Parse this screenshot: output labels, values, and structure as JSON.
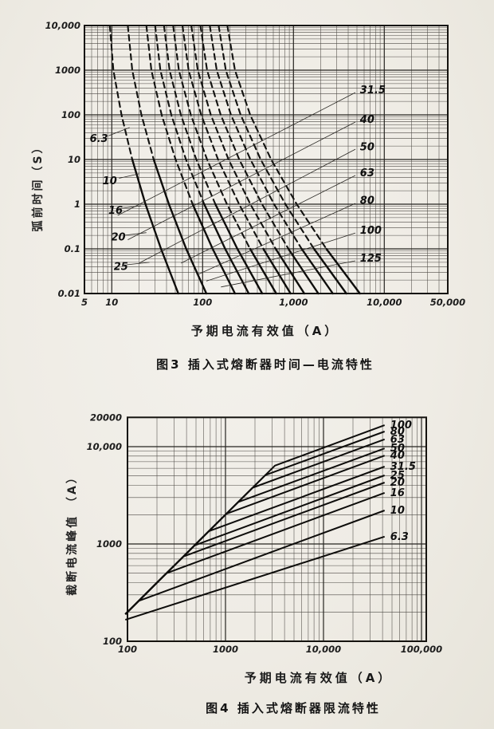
{
  "page": {
    "paper_color": "#efece5",
    "ink_color": "#1a1a1a"
  },
  "chart_data": [
    {
      "type": "line",
      "title": "图3  插入式熔断器时间—电流特性",
      "xlabel": "予期电流有效值（A）",
      "ylabel": "弧前时间（S）",
      "series_unit": "A",
      "x_axis": {
        "scale": "log",
        "min": 5,
        "max": 50000,
        "ticks": [
          {
            "v": 5,
            "label": "5"
          },
          {
            "v": 10,
            "label": "10"
          },
          {
            "v": 100,
            "label": "100"
          },
          {
            "v": 1000,
            "label": "1,000"
          },
          {
            "v": 10000,
            "label": "10,000"
          },
          {
            "v": 50000,
            "label": "50,000"
          }
        ]
      },
      "y_axis": {
        "scale": "log",
        "min": 0.01,
        "max": 10000,
        "ticks": [
          {
            "v": 10000,
            "label": "10,000"
          },
          {
            "v": 1000,
            "label": "1000"
          },
          {
            "v": 100,
            "label": "100"
          },
          {
            "v": 10,
            "label": "10"
          },
          {
            "v": 1,
            "label": "1"
          },
          {
            "v": 0.1,
            "label": "0.1"
          },
          {
            "v": 0.01,
            "label": "0.01"
          }
        ]
      },
      "series": [
        {
          "name": "6.3",
          "solid_from_t": 10,
          "points": [
            [
              9.5,
              10000
            ],
            [
              10.4,
              1000
            ],
            [
              12.8,
              100
            ],
            [
              16.8,
              10
            ],
            [
              23.5,
              1
            ],
            [
              34.8,
              0.1
            ],
            [
              54,
              0.01
            ]
          ]
        },
        {
          "name": "10",
          "solid_from_t": 10,
          "points": [
            [
              15,
              10000
            ],
            [
              16.8,
              1000
            ],
            [
              21.2,
              100
            ],
            [
              28.9,
              10
            ],
            [
              42.5,
              1
            ],
            [
              66,
              0.1
            ],
            [
              110,
              0.01
            ]
          ]
        },
        {
          "name": "16",
          "solid_from_t": 1,
          "points": [
            [
              24,
              10000
            ],
            [
              27.3,
              1000
            ],
            [
              35.4,
              100
            ],
            [
              50.4,
              10
            ],
            [
              77.7,
              1
            ],
            [
              129,
              0.1
            ],
            [
              227,
              0.01
            ]
          ]
        },
        {
          "name": "20",
          "solid_from_t": 1,
          "points": [
            [
              30,
              10000
            ],
            [
              34.3,
              1000
            ],
            [
              45.2,
              100
            ],
            [
              65.6,
              10
            ],
            [
              104,
              1
            ],
            [
              177,
              0.1
            ],
            [
              322,
              0.01
            ]
          ]
        },
        {
          "name": "25",
          "solid_from_t": 1,
          "points": [
            [
              37.5,
              10000
            ],
            [
              43.2,
              1000
            ],
            [
              57.6,
              100
            ],
            [
              85.3,
              10
            ],
            [
              138,
              1
            ],
            [
              241,
              0.1
            ],
            [
              453,
              0.01
            ]
          ]
        },
        {
          "name": "31.5",
          "solid_from_t": 0.1,
          "points": [
            [
              47.3,
              10000
            ],
            [
              54.8,
              1000
            ],
            [
              74.2,
              100
            ],
            [
              112,
              10
            ],
            [
              185,
              1
            ],
            [
              333,
              0.1
            ],
            [
              646,
              0.01
            ]
          ]
        },
        {
          "name": "40",
          "solid_from_t": 0.1,
          "points": [
            [
              60,
              10000
            ],
            [
              70.1,
              1000
            ],
            [
              96.3,
              100
            ],
            [
              148,
              10
            ],
            [
              252,
              1
            ],
            [
              466,
              0.1
            ],
            [
              930,
              0.01
            ]
          ]
        },
        {
          "name": "50",
          "solid_from_t": 0.1,
          "points": [
            [
              75,
              10000
            ],
            [
              88.3,
              1000
            ],
            [
              123,
              100
            ],
            [
              193,
              10
            ],
            [
              335,
              1
            ],
            [
              637,
              0.1
            ],
            [
              1315,
              0.01
            ]
          ]
        },
        {
          "name": "63",
          "solid_from_t": 0.1,
          "points": [
            [
              94.5,
              10000
            ],
            [
              112,
              1000
            ],
            [
              158,
              100
            ],
            [
              253,
              10
            ],
            [
              451,
              1
            ],
            [
              881,
              0.1
            ],
            [
              1877,
              0.01
            ]
          ]
        },
        {
          "name": "80",
          "solid_from_t": 0.1,
          "points": [
            [
              120,
              10000
            ],
            [
              143,
              1000
            ],
            [
              205,
              100
            ],
            [
              336,
              10
            ],
            [
              612,
              1
            ],
            [
              1232,
              0.1
            ],
            [
              2712,
              0.01
            ]
          ]
        },
        {
          "name": "100",
          "solid_from_t": 0.1,
          "points": [
            [
              150,
              10000
            ],
            [
              180,
              1000
            ],
            [
              262,
              100
            ],
            [
              436,
              10
            ],
            [
              815,
              1
            ],
            [
              1683,
              0.1
            ],
            [
              3820,
              0.01
            ]
          ]
        },
        {
          "name": "125",
          "solid_from_t": 0.1,
          "points": [
            [
              187,
              10000
            ],
            [
              227,
              1000
            ],
            [
              334,
              100
            ],
            [
              568,
              10
            ],
            [
              1085,
              1
            ],
            [
              2302,
              0.1
            ],
            [
              5390,
              0.01
            ]
          ]
        }
      ],
      "annotations": [
        {
          "text": "6.3",
          "at": [
            7.2,
            29
          ],
          "anchor": "middle",
          "leader": [
            [
              9.2,
              34
            ],
            [
              15.7,
              52
            ]
          ]
        },
        {
          "text": "10",
          "at": [
            9.5,
            3.3
          ],
          "anchor": "middle",
          "leader": [
            [
              12,
              3.8
            ],
            [
              20,
              4.8
            ]
          ]
        },
        {
          "text": "16",
          "at": [
            11,
            0.72
          ],
          "anchor": "middle",
          "leader": [
            [
              12.5,
              0.8
            ],
            [
              21,
              0.92
            ]
          ]
        },
        {
          "text": "20",
          "at": [
            11.8,
            0.18
          ],
          "anchor": "middle",
          "leader": [
            [
              13.5,
              0.2
            ],
            [
              24,
              0.23
            ]
          ]
        },
        {
          "text": "25",
          "at": [
            12.6,
            0.04
          ],
          "anchor": "middle",
          "leader": [
            [
              14.5,
              0.044
            ],
            [
              26,
              0.05
            ]
          ]
        },
        {
          "text": "31.5",
          "at": [
            5400,
            360
          ],
          "anchor": "start",
          "leader": [
            [
              4800,
              316
            ],
            [
              11.6,
              0.56
            ]
          ]
        },
        {
          "text": "40",
          "at": [
            5400,
            78
          ],
          "anchor": "start",
          "leader": [
            [
              4800,
              69
            ],
            [
              15,
              0.16
            ]
          ]
        },
        {
          "text": "50",
          "at": [
            5400,
            19
          ],
          "anchor": "start",
          "leader": [
            [
              4800,
              17
            ],
            [
              20,
              0.048
            ]
          ]
        },
        {
          "text": "63",
          "at": [
            5400,
            5
          ],
          "anchor": "start",
          "leader": [
            [
              4800,
              4.4
            ],
            [
              58,
              0.048
            ]
          ]
        },
        {
          "text": "80",
          "at": [
            5400,
            1.2
          ],
          "anchor": "start",
          "leader": [
            [
              4800,
              1.04
            ],
            [
              86,
              0.026
            ]
          ]
        },
        {
          "text": "100",
          "at": [
            5400,
            0.26
          ],
          "anchor": "start",
          "leader": [
            [
              4800,
              0.227
            ],
            [
              110,
              0.019
            ]
          ]
        },
        {
          "text": "125",
          "at": [
            5400,
            0.061
          ],
          "anchor": "start",
          "leader": [
            [
              4800,
              0.054
            ],
            [
              159,
              0.014
            ]
          ]
        }
      ]
    },
    {
      "type": "line",
      "title": "图4  插入式熔断器限流特性",
      "xlabel": "予期电流有效值（A）",
      "ylabel": "截断电流峰值 （A）",
      "series_unit": "A",
      "x_axis": {
        "scale": "log",
        "min": 100,
        "max": 110000,
        "ticks": [
          {
            "v": 100,
            "label": "100"
          },
          {
            "v": 1000,
            "label": "1000"
          },
          {
            "v": 10000,
            "label": "10,000"
          },
          {
            "v": 100000,
            "label": "100,000"
          }
        ]
      },
      "y_axis": {
        "scale": "log",
        "min": 100,
        "max": 20000,
        "ticks": [
          {
            "v": 20000,
            "label": "20000"
          },
          {
            "v": 10000,
            "label": "10,000"
          },
          {
            "v": 1000,
            "label": "1000"
          },
          {
            "v": 100,
            "label": "100"
          }
        ]
      },
      "series": [
        {
          "name": "100",
          "points": [
            [
              95,
              190
            ],
            [
              3190,
              6380
            ],
            [
              42000,
              16600
            ]
          ]
        },
        {
          "name": "80",
          "points": [
            [
              95,
              190
            ],
            [
              2550,
              5100
            ],
            [
              42000,
              14300
            ]
          ]
        },
        {
          "name": "63",
          "points": [
            [
              95,
              190
            ],
            [
              1890,
              3780
            ],
            [
              42000,
              11900
            ]
          ]
        },
        {
          "name": "50",
          "points": [
            [
              95,
              190
            ],
            [
              1350,
              2700
            ],
            [
              42000,
              9600
            ]
          ]
        },
        {
          "name": "40",
          "points": [
            [
              95,
              190
            ],
            [
              1020,
              2040
            ],
            [
              42000,
              8100
            ]
          ]
        },
        {
          "name": "31.5",
          "points": [
            [
              95,
              190
            ],
            [
              675,
              1350
            ],
            [
              42000,
              6240
            ]
          ]
        },
        {
          "name": "25",
          "points": [
            [
              95,
              190
            ],
            [
              482,
              964
            ],
            [
              42000,
              5070
            ]
          ]
        },
        {
          "name": "20",
          "points": [
            [
              95,
              190
            ],
            [
              371,
              742
            ],
            [
              42000,
              4280
            ]
          ]
        },
        {
          "name": "16",
          "points": [
            [
              95,
              190
            ],
            [
              250,
              500
            ],
            [
              42000,
              3350
            ]
          ]
        },
        {
          "name": "10",
          "points": [
            [
              95,
              190
            ],
            [
              130,
              260
            ],
            [
              42000,
              2210
            ]
          ]
        },
        {
          "name": "6.3",
          "points": [
            [
              95,
              166
            ],
            [
              42000,
              1190
            ]
          ]
        }
      ],
      "annotations": [
        {
          "text": "100",
          "at": [
            48000,
            16600
          ],
          "anchor": "start"
        },
        {
          "text": "80",
          "at": [
            48000,
            14300
          ],
          "anchor": "start"
        },
        {
          "text": "63",
          "at": [
            48000,
            11900
          ],
          "anchor": "start"
        },
        {
          "text": "50",
          "at": [
            48000,
            9600
          ],
          "anchor": "start"
        },
        {
          "text": "40",
          "at": [
            48000,
            8100
          ],
          "anchor": "start"
        },
        {
          "text": "31.5",
          "at": [
            48000,
            6240
          ],
          "anchor": "start"
        },
        {
          "text": "25",
          "at": [
            48000,
            5070
          ],
          "anchor": "start"
        },
        {
          "text": "20",
          "at": [
            48000,
            4280
          ],
          "anchor": "start"
        },
        {
          "text": "16",
          "at": [
            48000,
            3350
          ],
          "anchor": "start"
        },
        {
          "text": "10",
          "at": [
            48000,
            2210
          ],
          "anchor": "start"
        },
        {
          "text": "6.3",
          "at": [
            48000,
            1190
          ],
          "anchor": "start"
        }
      ]
    }
  ]
}
